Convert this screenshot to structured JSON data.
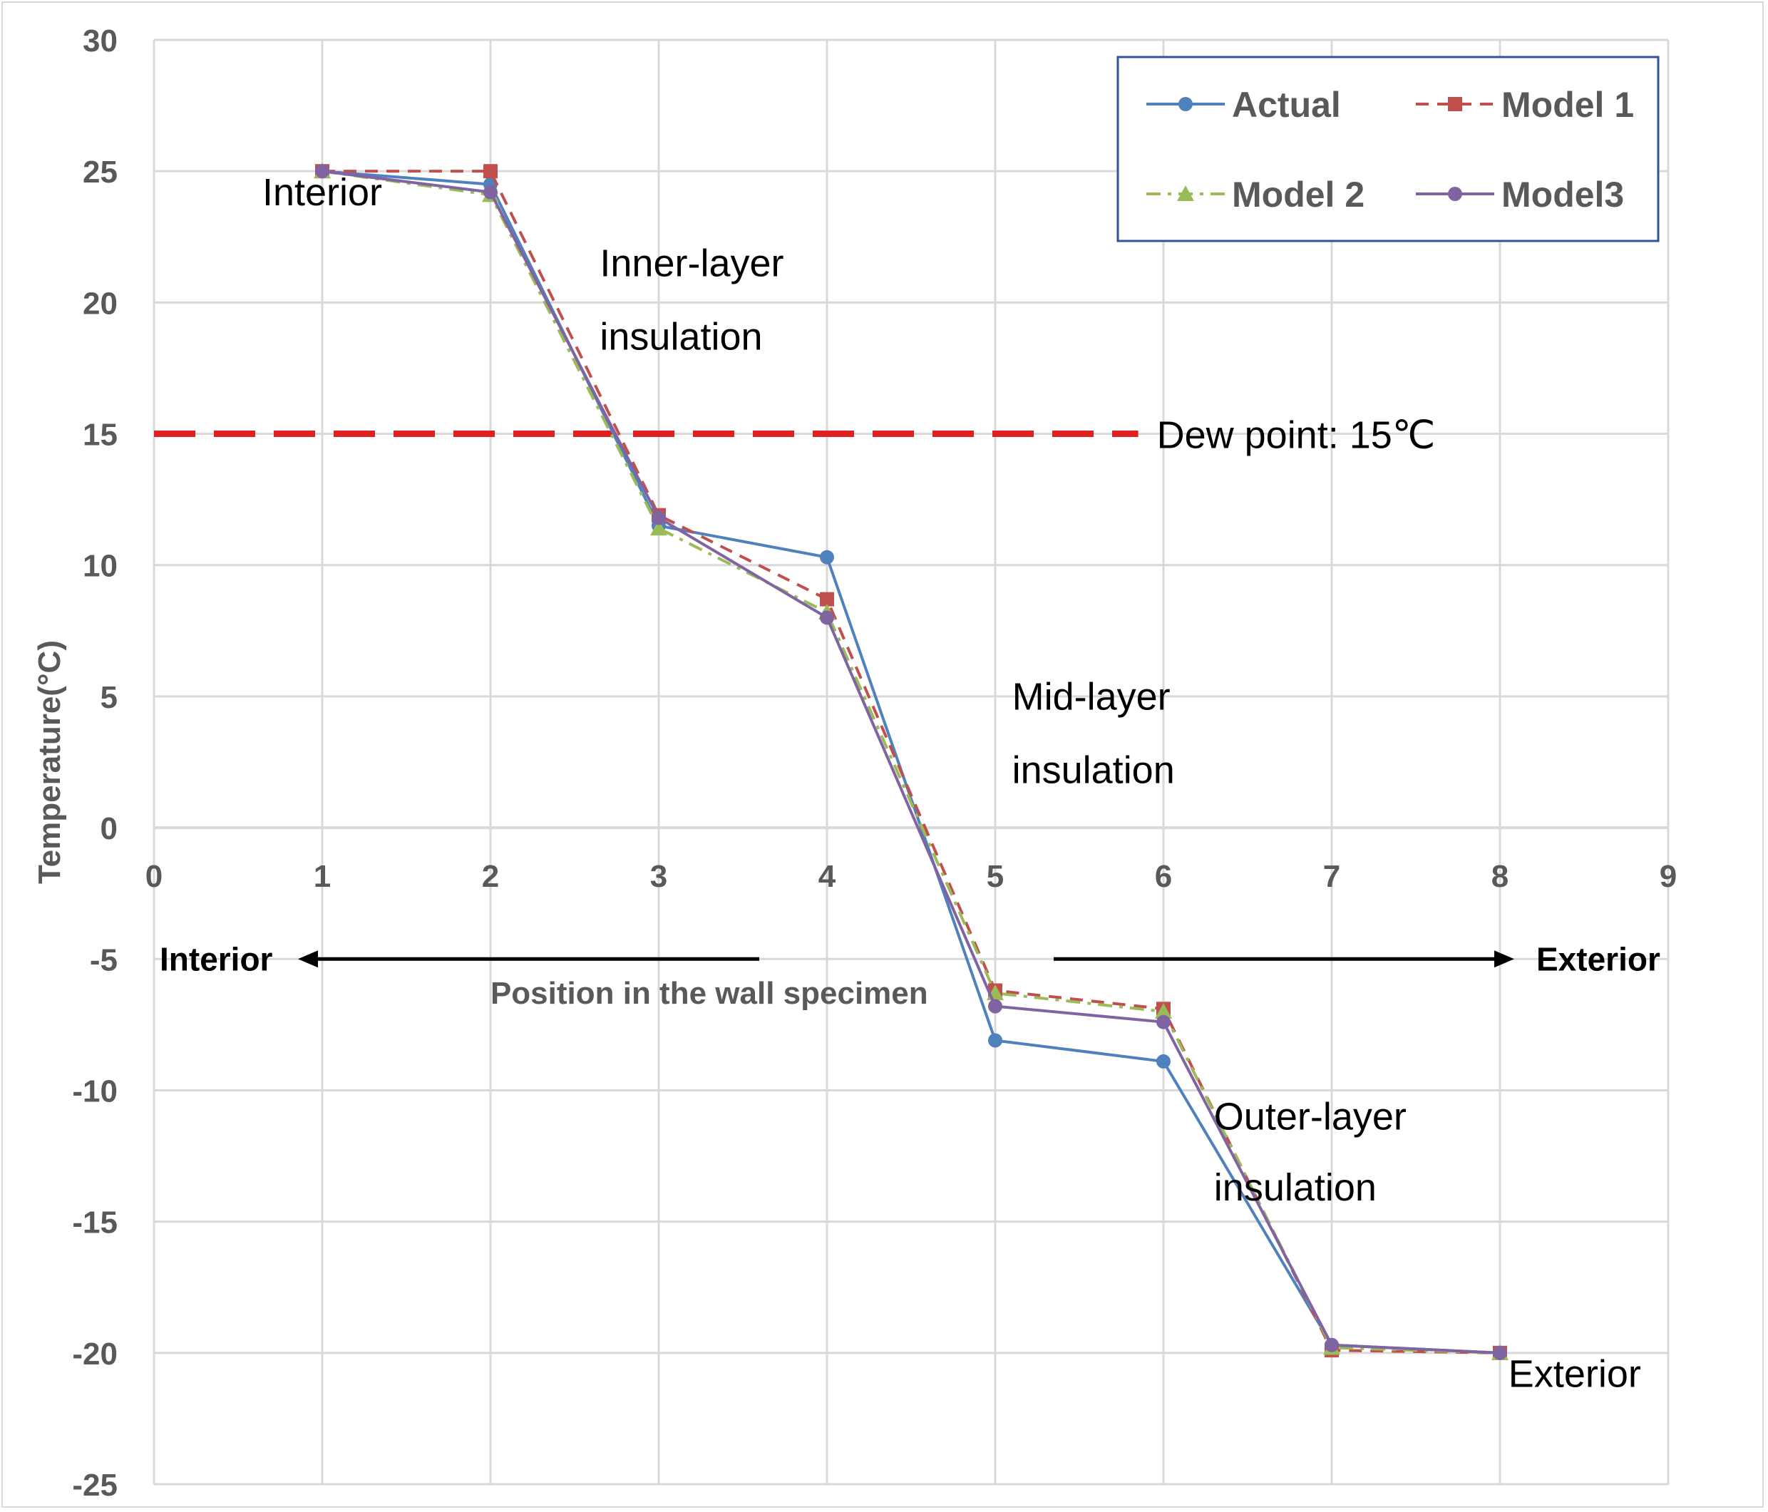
{
  "chart_data": {
    "type": "line",
    "xlim": [
      0,
      9
    ],
    "ylim": [
      -25,
      30
    ],
    "x_ticks": [
      0,
      1,
      2,
      3,
      4,
      5,
      6,
      7,
      8,
      9
    ],
    "y_ticks": [
      -25,
      -20,
      -15,
      -10,
      -5,
      0,
      5,
      10,
      15,
      20,
      25,
      30
    ],
    "xlabel": "Position in the wall specimen",
    "ylabel": "Temperature(°C)",
    "grid": true,
    "legend_position": "top-right",
    "x": [
      1,
      2,
      3,
      4,
      5,
      6,
      7,
      8
    ],
    "series": [
      {
        "name": "Actual",
        "color": "#4f81bd",
        "dash": "solid",
        "marker": "circle",
        "values": [
          25,
          24.5,
          11.5,
          10.3,
          -8.1,
          -8.9,
          -19.7,
          -20
        ]
      },
      {
        "name": "Model 1",
        "color": "#c0504d",
        "dash": "dashed",
        "marker": "square",
        "values": [
          25,
          25,
          11.9,
          8.7,
          -6.2,
          -6.9,
          -19.9,
          -20
        ]
      },
      {
        "name": "Model 2",
        "color": "#9bbb59",
        "dash": "dashdot",
        "marker": "triangle",
        "values": [
          25,
          24.1,
          11.4,
          8.2,
          -6.3,
          -7.0,
          -19.8,
          -20
        ]
      },
      {
        "name": "Model3",
        "color": "#8064a2",
        "dash": "solid",
        "marker": "circle",
        "values": [
          25,
          24.2,
          11.8,
          8.0,
          -6.8,
          -7.4,
          -19.7,
          -20
        ]
      }
    ],
    "reference_line": {
      "y": 15,
      "x_start": 0,
      "x_end": 5.85,
      "color": "#e02020",
      "label": "Dew point: 15℃"
    },
    "annotations": [
      {
        "text": "Interior",
        "x": 1.0,
        "y": 23.7
      },
      {
        "text": "Inner-layer",
        "x": 2.65,
        "y": 21.0
      },
      {
        "text": "insulation",
        "x": 2.65,
        "y": 18.2
      },
      {
        "text": "Mid-layer",
        "x": 5.1,
        "y": 4.5
      },
      {
        "text": "insulation",
        "x": 5.1,
        "y": 1.7
      },
      {
        "text": "Outer-layer",
        "x": 6.3,
        "y": -11.5
      },
      {
        "text": "insulation",
        "x": 6.3,
        "y": -14.2
      },
      {
        "text": "Exterior",
        "x": 8.05,
        "y": -21.3
      }
    ],
    "direction_labels": {
      "left": "Interior",
      "right": "Exterior"
    }
  }
}
